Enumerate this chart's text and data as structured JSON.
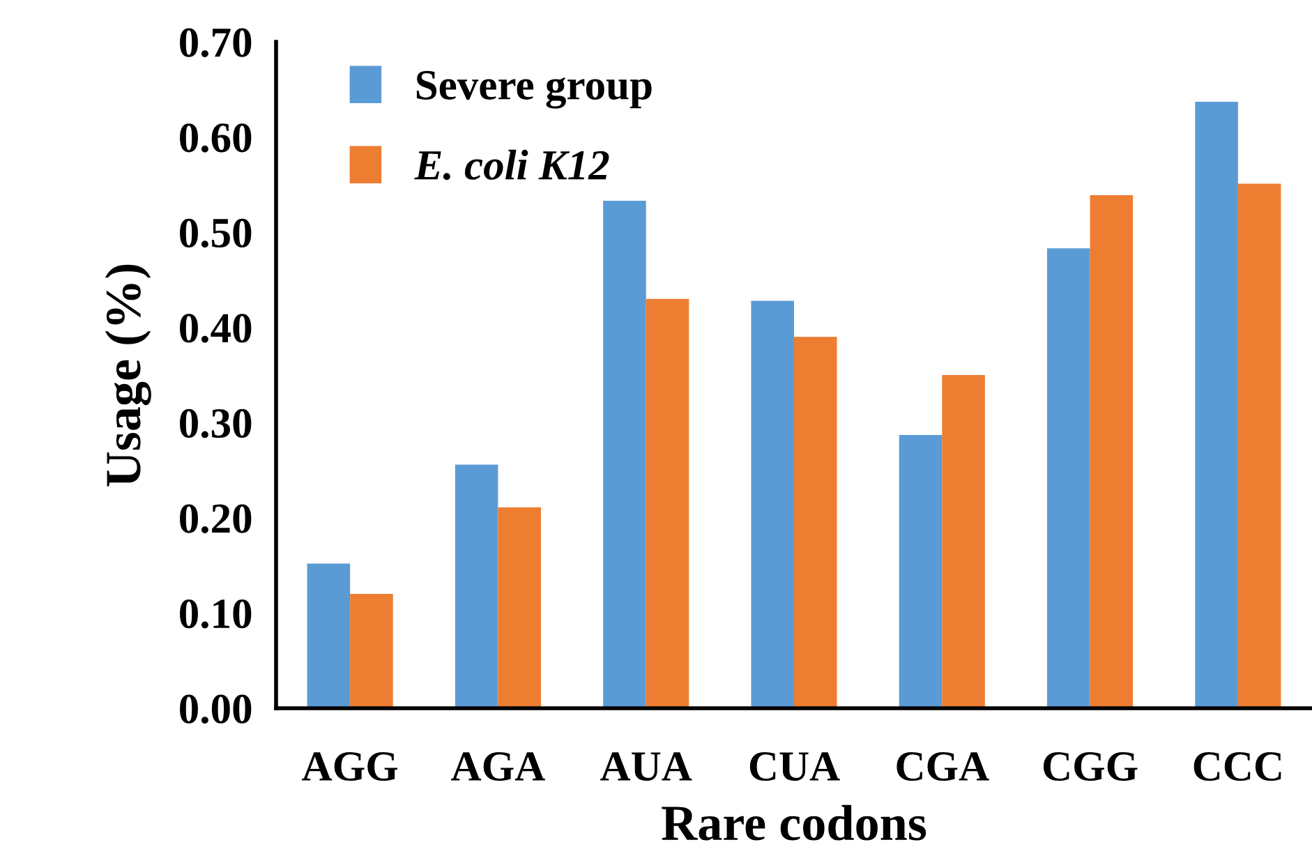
{
  "chart_data": {
    "type": "bar",
    "xlabel": "Rare codons",
    "ylabel": "Usage (%)",
    "categories": [
      "AGG",
      "AGA",
      "AUA",
      "CUA",
      "CGA",
      "CGG",
      "CCC"
    ],
    "series": [
      {
        "name": "Severe group",
        "color": "#5b9bd5",
        "values": [
          0.152,
          0.256,
          0.533,
          0.428,
          0.287,
          0.483,
          0.637
        ]
      },
      {
        "name": "E. coli K12",
        "color": "#ed7d31",
        "values": [
          0.12,
          0.211,
          0.43,
          0.39,
          0.35,
          0.539,
          0.551
        ]
      }
    ],
    "ylim": [
      0,
      0.7
    ],
    "yticks": [
      {
        "value": 0,
        "label": "0.00"
      },
      {
        "value": 0.1,
        "label": "0.10"
      },
      {
        "value": 0.2,
        "label": "0.20"
      },
      {
        "value": 0.3,
        "label": "0.30"
      },
      {
        "value": 0.4,
        "label": "0.40"
      },
      {
        "value": 0.5,
        "label": "0.50"
      },
      {
        "value": 0.6,
        "label": "0.60"
      },
      {
        "value": 0.7,
        "label": "0.70"
      }
    ],
    "grid": false,
    "legend": "top left"
  }
}
